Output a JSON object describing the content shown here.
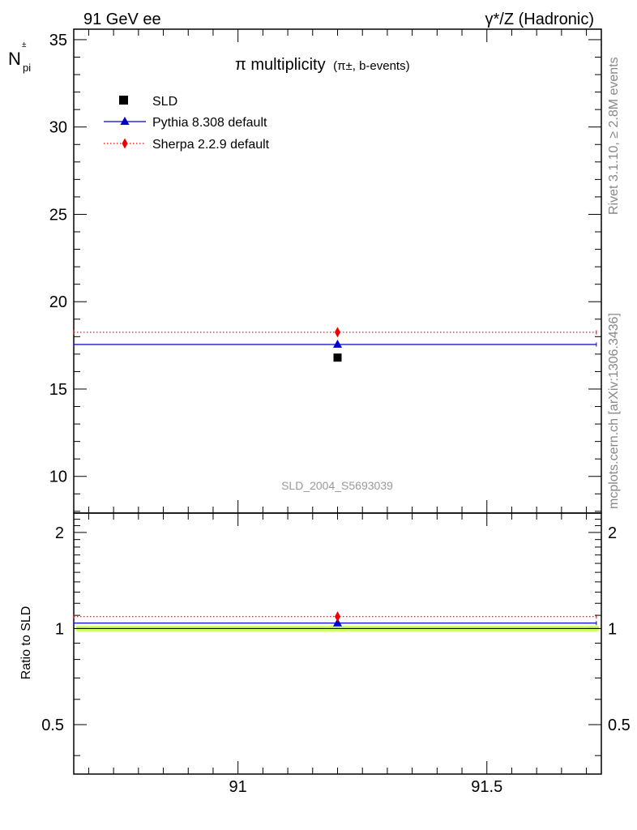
{
  "header": {
    "left": "91 GeV ee",
    "right": "γ*/Z (Hadronic)"
  },
  "side_text": {
    "rivet": "Rivet 3.1.10, ≥ 2.8M events",
    "mcplots": "mcplots.cern.ch [arXiv:1306.3436]"
  },
  "title": {
    "main": "π multiplicity",
    "sub": "(π±, b-events)"
  },
  "analysis_id": "SLD_2004_S5693039",
  "chart_data": [
    {
      "type": "scatter",
      "panel": "main",
      "ylabel": "N_pi^pm",
      "xlim": [
        90.67,
        91.73
      ],
      "ylim": [
        7.9,
        35.6
      ],
      "x_ticks": [],
      "y_ticks": [
        10,
        15,
        20,
        25,
        30,
        35
      ],
      "legend_position": "top-left",
      "series": [
        {
          "name": "SLD",
          "marker": "square",
          "color": "#000000",
          "line": "none",
          "points": [
            {
              "x": 91.2,
              "y": 16.8
            }
          ]
        },
        {
          "name": "Pythia 8.308 default",
          "marker": "triangle",
          "color": "#0000cc",
          "line": "solid",
          "points": [
            {
              "x": 91.2,
              "y": 17.55,
              "xlow": 90.67,
              "xhigh": 91.72
            }
          ]
        },
        {
          "name": "Sherpa 2.2.9 default",
          "marker": "diamond",
          "color": "#ee0000",
          "line": "dotted",
          "points": [
            {
              "x": 91.2,
              "y": 18.25,
              "xlow": 90.67,
              "xhigh": 91.72
            }
          ]
        }
      ]
    },
    {
      "type": "scatter",
      "panel": "ratio",
      "ylabel": "Ratio to SLD",
      "xlim": [
        90.67,
        91.73
      ],
      "ylim": [
        0.35,
        2.3
      ],
      "x_ticks": [
        "91",
        "91.5"
      ],
      "y_ticks": [
        "0.5",
        "1",
        "2"
      ],
      "y_tick_values": [
        0.5,
        1,
        2
      ],
      "reference_band": {
        "low": 0.98,
        "high": 1.02,
        "color": "#ccff66"
      },
      "series": [
        {
          "name": "Pythia 8.308 default",
          "marker": "triangle",
          "color": "#0000cc",
          "line": "solid",
          "points": [
            {
              "x": 91.2,
              "y": 1.04,
              "xlow": 90.67,
              "xhigh": 91.72
            }
          ]
        },
        {
          "name": "Sherpa 2.2.9 default",
          "marker": "diamond",
          "color": "#ee0000",
          "line": "dotted",
          "points": [
            {
              "x": 91.2,
              "y": 1.09,
              "xlow": 90.67,
              "xhigh": 91.72
            }
          ]
        }
      ]
    }
  ]
}
